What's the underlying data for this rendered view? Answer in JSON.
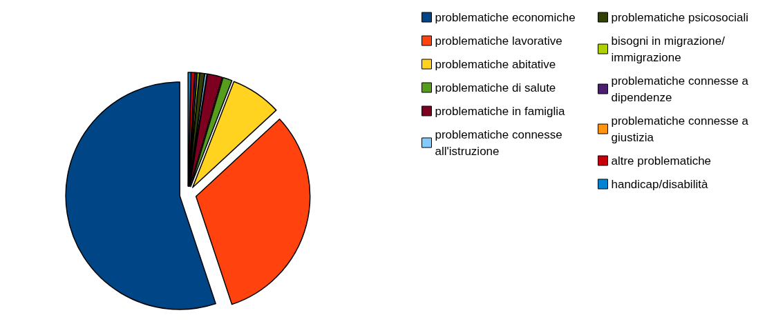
{
  "chart_data": {
    "type": "pie",
    "categories": [
      "problematiche economiche",
      "problematiche lavorative",
      "problematiche abitative",
      "problematiche di salute",
      "problematiche in famiglia",
      "problematiche connesse all'istruzione",
      "problematiche psicosociali",
      "bisogni in migrazione/immigrazione",
      "problematiche connesse a dipendenze",
      "problematiche connesse a giustizia",
      "altre problematiche",
      "handicap/disabilità"
    ],
    "values": [
      55.1,
      31.8,
      7.2,
      1.3,
      2.1,
      0.3,
      0.7,
      0.3,
      0.3,
      null,
      0.5,
      0.4
    ],
    "colors": [
      "#004586",
      "#ff420e",
      "#ffd320",
      "#579d1c",
      "#7e0021",
      "#83caff",
      "#314004",
      "#aecf00",
      "#4b1f6f",
      "#ff950e",
      "#c5000b",
      "#0084d1"
    ],
    "legend": "right"
  }
}
